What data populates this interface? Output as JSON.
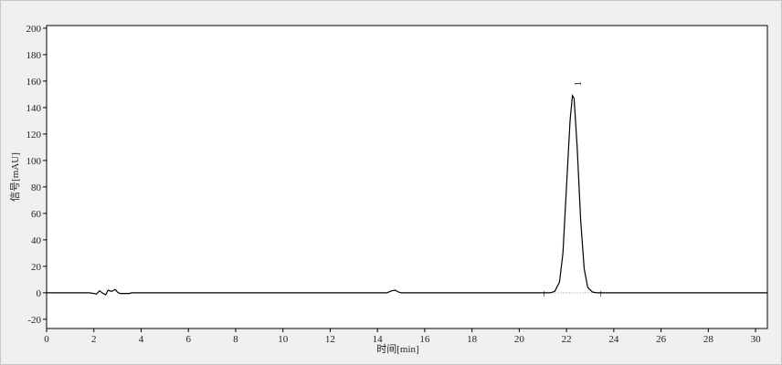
{
  "chart_data": {
    "type": "line",
    "title": "",
    "xlabel": "时间[min]",
    "ylabel": "信号[mAU]",
    "xlim": [
      0,
      30.5
    ],
    "ylim": [
      -27,
      202
    ],
    "xticks": [
      0,
      2,
      4,
      6,
      8,
      10,
      12,
      14,
      16,
      18,
      20,
      22,
      24,
      26,
      28,
      30
    ],
    "yticks": [
      -20,
      0,
      20,
      40,
      60,
      80,
      100,
      120,
      140,
      160,
      180,
      200
    ],
    "grid": false,
    "line_color": "#000000",
    "series": [
      {
        "points": [
          [
            0,
            0
          ],
          [
            1.8,
            0
          ],
          [
            2.0,
            -0.5
          ],
          [
            2.1,
            -1
          ],
          [
            2.25,
            1.5
          ],
          [
            2.35,
            0
          ],
          [
            2.5,
            -1.5
          ],
          [
            2.6,
            2
          ],
          [
            2.75,
            1
          ],
          [
            2.9,
            2.5
          ],
          [
            3.0,
            0.5
          ],
          [
            3.1,
            -0.5
          ],
          [
            3.5,
            -0.5
          ],
          [
            3.6,
            0
          ],
          [
            14.4,
            0
          ],
          [
            14.6,
            1.5
          ],
          [
            14.75,
            2
          ],
          [
            14.9,
            0.5
          ],
          [
            15.0,
            0
          ],
          [
            21.3,
            0
          ],
          [
            21.5,
            1
          ],
          [
            21.7,
            8
          ],
          [
            21.85,
            30
          ],
          [
            22.0,
            80
          ],
          [
            22.15,
            130
          ],
          [
            22.25,
            149
          ],
          [
            22.32,
            147
          ],
          [
            22.45,
            110
          ],
          [
            22.6,
            55
          ],
          [
            22.75,
            18
          ],
          [
            22.9,
            4
          ],
          [
            23.1,
            0.5
          ],
          [
            23.3,
            0
          ],
          [
            30.5,
            0
          ]
        ]
      }
    ],
    "annotations": [
      {
        "text": "1",
        "x": 22.3,
        "y": 158
      }
    ],
    "baseline_marks": [
      21.05,
      23.45
    ]
  }
}
